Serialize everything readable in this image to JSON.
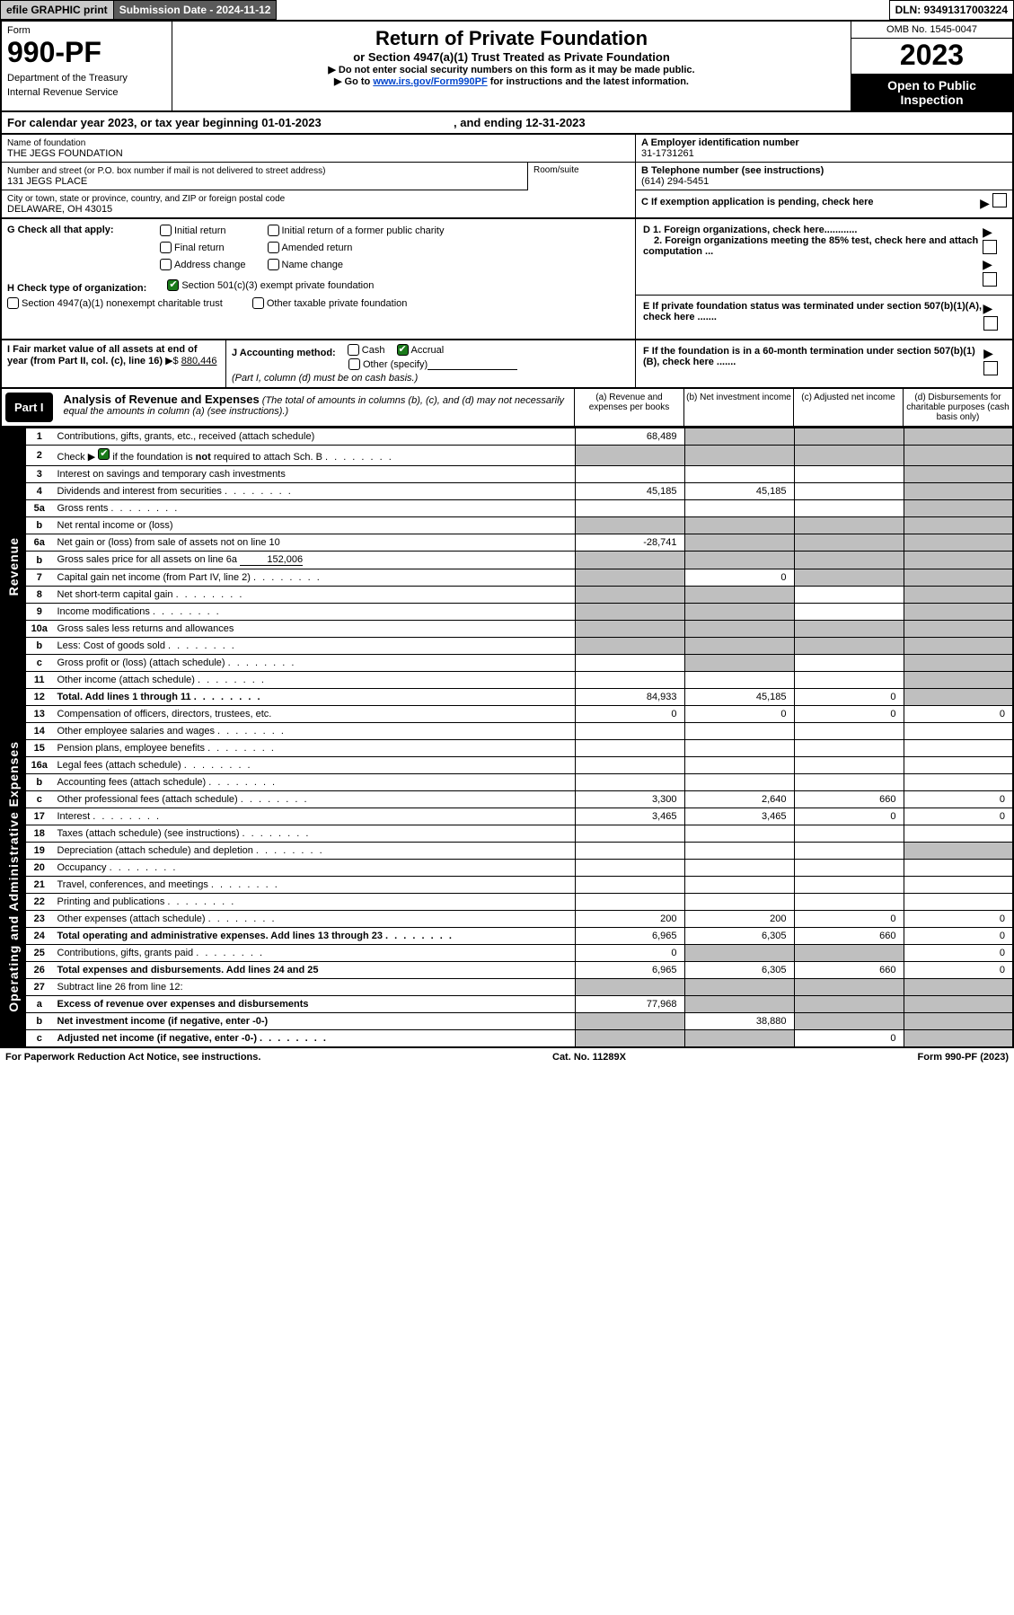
{
  "topbar": {
    "efile": "efile GRAPHIC print",
    "sub_label": "Submission Date - 2024-11-12",
    "dln": "DLN: 93491317003224"
  },
  "header": {
    "form_label": "Form",
    "form_number": "990-PF",
    "dept1": "Department of the Treasury",
    "dept2": "Internal Revenue Service",
    "title": "Return of Private Foundation",
    "subtitle": "or Section 4947(a)(1) Trust Treated as Private Foundation",
    "note1": "▶ Do not enter social security numbers on this form as it may be made public.",
    "note2a": "▶ Go to ",
    "note2_link": "www.irs.gov/Form990PF",
    "note2b": " for instructions and the latest information.",
    "omb": "OMB No. 1545-0047",
    "year": "2023",
    "open_pub": "Open to Public Inspection"
  },
  "calyear": {
    "text_a": "For calendar year 2023, or tax year beginning 01-01-2023",
    "text_b": ", and ending 12-31-2023"
  },
  "info_left": {
    "name_lbl": "Name of foundation",
    "name": "THE JEGS FOUNDATION",
    "street_lbl": "Number and street (or P.O. box number if mail is not delivered to street address)",
    "street": "131 JEGS PLACE",
    "room_lbl": "Room/suite",
    "city_lbl": "City or town, state or province, country, and ZIP or foreign postal code",
    "city": "DELAWARE, OH  43015"
  },
  "info_right": {
    "a_lbl": "A Employer identification number",
    "a_val": "31-1731261",
    "b_lbl": "B Telephone number (see instructions)",
    "b_val": "(614) 294-5451",
    "c_lbl": "C If exemption application is pending, check here"
  },
  "row_g": {
    "label": "G Check all that apply:",
    "opts": {
      "initial": "Initial return",
      "initial_former": "Initial return of a former public charity",
      "final": "Final return",
      "amended": "Amended return",
      "addr": "Address change",
      "name": "Name change"
    },
    "d1": "D 1. Foreign organizations, check here............",
    "d2": "2. Foreign organizations meeting the 85% test, check here and attach computation ...",
    "e": "E  If private foundation status was terminated under section 507(b)(1)(A), check here .......",
    "f": "F  If the foundation is in a 60-month termination under section 507(b)(1)(B), check here ......."
  },
  "row_h": {
    "label": "H Check type of organization:",
    "opt1": "Section 501(c)(3) exempt private foundation",
    "opt2": "Section 4947(a)(1) nonexempt charitable trust",
    "opt3": "Other taxable private foundation"
  },
  "row_i": {
    "label": "I Fair market value of all assets at end of year (from Part II, col. (c), line 16)",
    "prefix": "▶$ ",
    "value": "880,446"
  },
  "row_j": {
    "label": "J Accounting method:",
    "cash": "Cash",
    "accrual": "Accrual",
    "other": "Other (specify)",
    "note": "(Part I, column (d) must be on cash basis.)"
  },
  "part1": {
    "badge": "Part I",
    "title": "Analysis of Revenue and Expenses",
    "sub": " (The total of amounts in columns (b), (c), and (d) may not necessarily equal the amounts in column (a) (see instructions).)",
    "col_a": "(a)  Revenue and expenses per books",
    "col_b": "(b)  Net investment income",
    "col_c": "(c)  Adjusted net income",
    "col_d": "(d)  Disbursements for charitable purposes (cash basis only)"
  },
  "side": {
    "rev": "Revenue",
    "exp": "Operating and Administrative Expenses"
  },
  "rows": [
    {
      "n": "1",
      "lbl": "Contributions, gifts, grants, etc., received (attach schedule)",
      "a": "68,489",
      "b": "",
      "c": "",
      "d": "",
      "sh": [
        "b",
        "c",
        "d"
      ]
    },
    {
      "n": "2",
      "lbl": "Check ▶ ☑ if the foundation is not required to attach Sch. B",
      "dots": 1,
      "a": "",
      "b": "",
      "c": "",
      "d": "",
      "sh": [
        "a",
        "b",
        "c",
        "d"
      ],
      "check": true,
      "boldwords": "not"
    },
    {
      "n": "3",
      "lbl": "Interest on savings and temporary cash investments",
      "a": "",
      "b": "",
      "c": "",
      "d": "",
      "sh": [
        "d"
      ]
    },
    {
      "n": "4",
      "lbl": "Dividends and interest from securities",
      "dots": 1,
      "a": "45,185",
      "b": "45,185",
      "c": "",
      "d": "",
      "sh": [
        "d"
      ]
    },
    {
      "n": "5a",
      "lbl": "Gross rents",
      "dots": 1,
      "a": "",
      "b": "",
      "c": "",
      "d": "",
      "sh": [
        "d"
      ]
    },
    {
      "n": "b",
      "lbl": "Net rental income or (loss)",
      "a": "",
      "b": "",
      "c": "",
      "d": "",
      "sh": [
        "a",
        "b",
        "c",
        "d"
      ],
      "innerbox": 1
    },
    {
      "n": "6a",
      "lbl": "Net gain or (loss) from sale of assets not on line 10",
      "a": "-28,741",
      "b": "",
      "c": "",
      "d": "",
      "sh": [
        "b",
        "c",
        "d"
      ]
    },
    {
      "n": "b",
      "lbl": "Gross sales price for all assets on line 6a",
      "a": "",
      "b": "",
      "c": "",
      "d": "",
      "sh": [
        "a",
        "b",
        "c",
        "d"
      ],
      "inline": "152,006"
    },
    {
      "n": "7",
      "lbl": "Capital gain net income (from Part IV, line 2)",
      "dots": 1,
      "a": "",
      "b": "0",
      "c": "",
      "d": "",
      "sh": [
        "a",
        "c",
        "d"
      ]
    },
    {
      "n": "8",
      "lbl": "Net short-term capital gain",
      "dots": 1,
      "a": "",
      "b": "",
      "c": "",
      "d": "",
      "sh": [
        "a",
        "b",
        "d"
      ]
    },
    {
      "n": "9",
      "lbl": "Income modifications",
      "dots": 1,
      "a": "",
      "b": "",
      "c": "",
      "d": "",
      "sh": [
        "a",
        "b",
        "d"
      ]
    },
    {
      "n": "10a",
      "lbl": "Gross sales less returns and allowances",
      "a": "",
      "b": "",
      "c": "",
      "d": "",
      "sh": [
        "a",
        "b",
        "c",
        "d"
      ],
      "innerbox": 1
    },
    {
      "n": "b",
      "lbl": "Less: Cost of goods sold",
      "dots": 1,
      "a": "",
      "b": "",
      "c": "",
      "d": "",
      "sh": [
        "a",
        "b",
        "c",
        "d"
      ],
      "innerbox": 1
    },
    {
      "n": "c",
      "lbl": "Gross profit or (loss) (attach schedule)",
      "dots": 1,
      "a": "",
      "b": "",
      "c": "",
      "d": "",
      "sh": [
        "b",
        "d"
      ]
    },
    {
      "n": "11",
      "lbl": "Other income (attach schedule)",
      "dots": 1,
      "a": "",
      "b": "",
      "c": "",
      "d": "",
      "sh": [
        "d"
      ]
    },
    {
      "n": "12",
      "lbl": "Total. Add lines 1 through 11",
      "dots": 1,
      "a": "84,933",
      "b": "45,185",
      "c": "0",
      "d": "",
      "sh": [
        "d"
      ],
      "bold": 1
    }
  ],
  "rows_exp": [
    {
      "n": "13",
      "lbl": "Compensation of officers, directors, trustees, etc.",
      "a": "0",
      "b": "0",
      "c": "0",
      "d": "0"
    },
    {
      "n": "14",
      "lbl": "Other employee salaries and wages",
      "dots": 1,
      "a": "",
      "b": "",
      "c": "",
      "d": ""
    },
    {
      "n": "15",
      "lbl": "Pension plans, employee benefits",
      "dots": 1,
      "a": "",
      "b": "",
      "c": "",
      "d": ""
    },
    {
      "n": "16a",
      "lbl": "Legal fees (attach schedule)",
      "dots": 1,
      "a": "",
      "b": "",
      "c": "",
      "d": ""
    },
    {
      "n": "b",
      "lbl": "Accounting fees (attach schedule)",
      "dots": 1,
      "a": "",
      "b": "",
      "c": "",
      "d": ""
    },
    {
      "n": "c",
      "lbl": "Other professional fees (attach schedule)",
      "dots": 1,
      "a": "3,300",
      "b": "2,640",
      "c": "660",
      "d": "0"
    },
    {
      "n": "17",
      "lbl": "Interest",
      "dots": 1,
      "a": "3,465",
      "b": "3,465",
      "c": "0",
      "d": "0"
    },
    {
      "n": "18",
      "lbl": "Taxes (attach schedule) (see instructions)",
      "dots": 1,
      "a": "",
      "b": "",
      "c": "",
      "d": ""
    },
    {
      "n": "19",
      "lbl": "Depreciation (attach schedule) and depletion",
      "dots": 1,
      "a": "",
      "b": "",
      "c": "",
      "d": "",
      "sh": [
        "d"
      ]
    },
    {
      "n": "20",
      "lbl": "Occupancy",
      "dots": 1,
      "a": "",
      "b": "",
      "c": "",
      "d": ""
    },
    {
      "n": "21",
      "lbl": "Travel, conferences, and meetings",
      "dots": 1,
      "a": "",
      "b": "",
      "c": "",
      "d": ""
    },
    {
      "n": "22",
      "lbl": "Printing and publications",
      "dots": 1,
      "a": "",
      "b": "",
      "c": "",
      "d": ""
    },
    {
      "n": "23",
      "lbl": "Other expenses (attach schedule)",
      "dots": 1,
      "a": "200",
      "b": "200",
      "c": "0",
      "d": "0"
    },
    {
      "n": "24",
      "lbl": "Total operating and administrative expenses. Add lines 13 through 23",
      "dots": 1,
      "a": "6,965",
      "b": "6,305",
      "c": "660",
      "d": "0",
      "bold": 1
    },
    {
      "n": "25",
      "lbl": "Contributions, gifts, grants paid",
      "dots": 1,
      "a": "0",
      "b": "",
      "c": "",
      "d": "0",
      "sh": [
        "b",
        "c"
      ]
    },
    {
      "n": "26",
      "lbl": "Total expenses and disbursements. Add lines 24 and 25",
      "a": "6,965",
      "b": "6,305",
      "c": "660",
      "d": "0",
      "bold": 1
    },
    {
      "n": "27",
      "lbl": "Subtract line 26 from line 12:",
      "a": "",
      "b": "",
      "c": "",
      "d": "",
      "sh": [
        "a",
        "b",
        "c",
        "d"
      ]
    },
    {
      "n": "a",
      "lbl": "Excess of revenue over expenses and disbursements",
      "a": "77,968",
      "b": "",
      "c": "",
      "d": "",
      "sh": [
        "b",
        "c",
        "d"
      ],
      "bold": 1
    },
    {
      "n": "b",
      "lbl": "Net investment income (if negative, enter -0-)",
      "a": "",
      "b": "38,880",
      "c": "",
      "d": "",
      "sh": [
        "a",
        "c",
        "d"
      ],
      "bold": 1
    },
    {
      "n": "c",
      "lbl": "Adjusted net income (if negative, enter -0-)",
      "dots": 1,
      "a": "",
      "b": "",
      "c": "0",
      "d": "",
      "sh": [
        "a",
        "b",
        "d"
      ],
      "bold": 1
    }
  ],
  "foot": {
    "left": "For Paperwork Reduction Act Notice, see instructions.",
    "mid": "Cat. No. 11289X",
    "right": "Form 990-PF (2023)"
  },
  "colors": {
    "shade": "#bfbfbf",
    "black": "#000000",
    "link": "#0044cc",
    "check": "#1a7a1a"
  }
}
